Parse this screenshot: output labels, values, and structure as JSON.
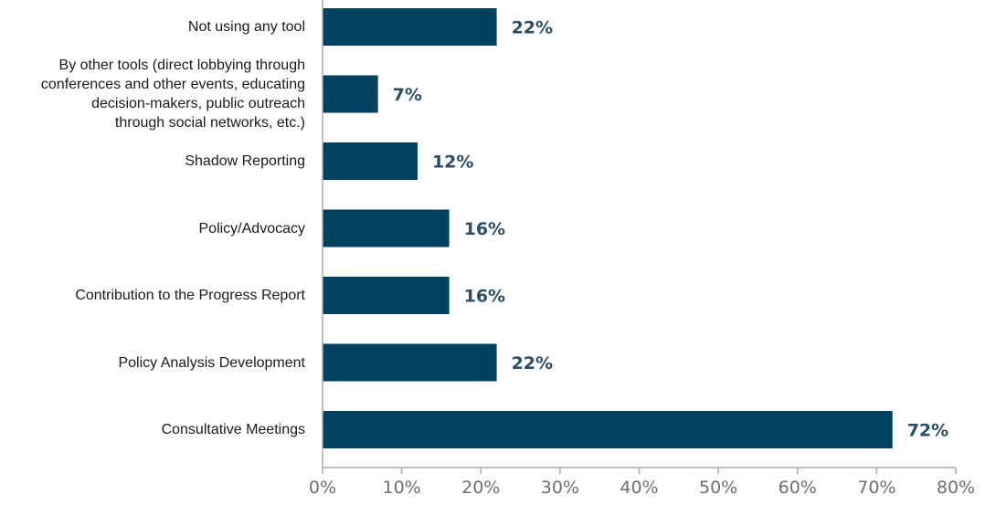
{
  "chart_data": {
    "type": "bar",
    "orientation": "horizontal",
    "categories": [
      "Not using any tool",
      "By other tools (direct lobbying through conferences and other events, educating decision-makers, public outreach through social networks, etc.)",
      "Shadow Reporting",
      "Policy/Advocacy",
      "Contribution to the Progress Report",
      "Policy Analysis Development",
      "Consultative Meetings"
    ],
    "category_lines": [
      [
        "Not using any tool"
      ],
      [
        "By other tools (direct lobbying through",
        "conferences and other events, educating",
        "decision-makers, public outreach",
        "through social networks, etc.)"
      ],
      [
        "Shadow Reporting"
      ],
      [
        "Policy/Advocacy"
      ],
      [
        "Contribution to the Progress Report"
      ],
      [
        "Policy Analysis Development"
      ],
      [
        "Consultative Meetings"
      ]
    ],
    "values": [
      22,
      7,
      12,
      16,
      16,
      22,
      72
    ],
    "value_labels": [
      "22%",
      "7%",
      "12%",
      "16%",
      "16%",
      "22%",
      "72%"
    ],
    "xlim": [
      0,
      80
    ],
    "x_ticks": [
      0,
      10,
      20,
      30,
      40,
      50,
      60,
      70,
      80
    ],
    "x_tick_labels": [
      "0%",
      "10%",
      "20%",
      "30%",
      "40%",
      "50%",
      "60%",
      "70%",
      "80%"
    ],
    "grid": false,
    "legend": "none",
    "colors": {
      "bar": "#00415f",
      "value_label": "#2a4e68",
      "axis": "#aaaaaa",
      "tick_label": "#6e6e6e"
    }
  }
}
